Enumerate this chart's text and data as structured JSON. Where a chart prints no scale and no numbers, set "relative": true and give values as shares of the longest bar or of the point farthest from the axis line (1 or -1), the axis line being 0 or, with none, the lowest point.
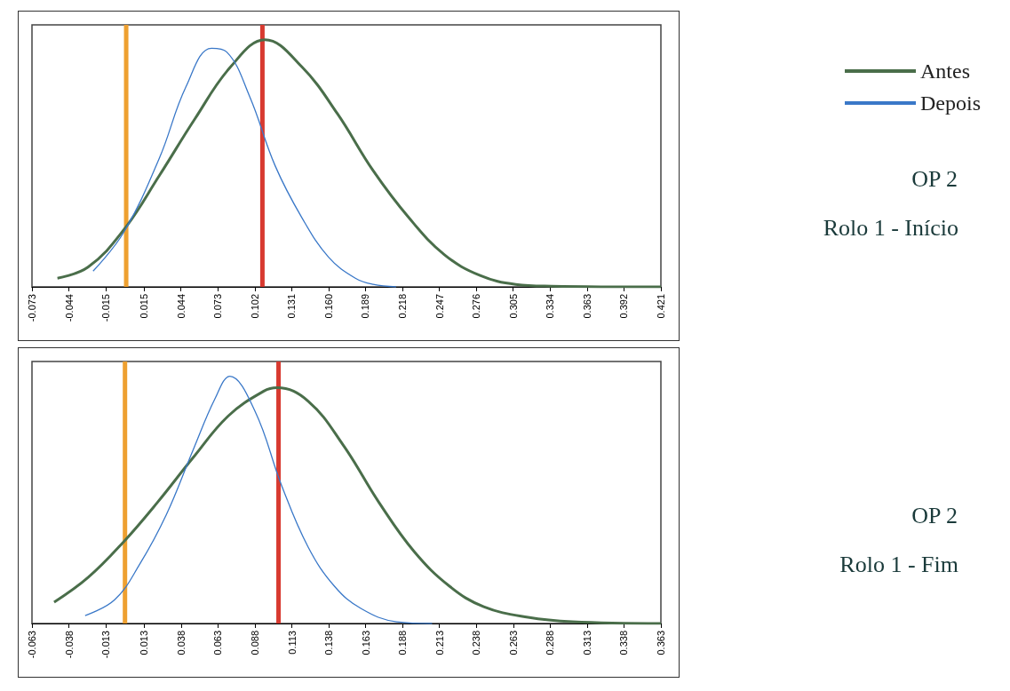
{
  "chart_data": [
    {
      "type": "line",
      "relative": true,
      "legend": "top right",
      "grid": false,
      "marker": "none",
      "annotations": [
        "OP 2",
        "Rolo 1 - Início"
      ],
      "xlim": [
        -0.073,
        0.421
      ],
      "xticks": [
        -0.073,
        -0.044,
        -0.015,
        0.015,
        0.044,
        0.073,
        0.102,
        0.131,
        {
          "value": 0.16,
          "label": "0.160"
        },
        0.189,
        0.218,
        0.247,
        0.276,
        0.305,
        0.334,
        0.363,
        0.392,
        0.421
      ],
      "ref_lines": [
        {
          "axis": "x",
          "value": 0.001,
          "color": "#eea030"
        },
        {
          "axis": "x",
          "value": 0.108,
          "color": "#d83a30"
        }
      ],
      "series": [
        {
          "name": "Antes",
          "color": "#4a6e4a",
          "x": [
            -0.053,
            -0.029,
            -0.001,
            0.027,
            0.055,
            0.083,
            0.11,
            0.139,
            0.167,
            0.195,
            0.223,
            0.251,
            0.279,
            0.307,
            0.335,
            0.421
          ],
          "values": [
            0.035,
            0.08,
            0.23,
            0.45,
            0.68,
            0.89,
            1,
            0.89,
            0.7,
            0.47,
            0.28,
            0.13,
            0.046,
            0.01,
            0.003,
            0
          ]
        },
        {
          "name": "Depois",
          "color": "#3a78c8",
          "x": [
            -0.025,
            -0.001,
            0.027,
            0.048,
            0.068,
            0.08,
            0.098,
            0.118,
            0.139,
            0.16,
            0.181,
            0.195,
            0.213
          ],
          "values": [
            0.064,
            0.22,
            0.52,
            0.81,
            0.965,
            0.95,
            0.77,
            0.49,
            0.28,
            0.12,
            0.035,
            0.01,
            0
          ]
        }
      ]
    },
    {
      "type": "line",
      "relative": true,
      "legend": false,
      "grid": false,
      "marker": "none",
      "annotations": [
        "OP 2",
        "Rolo 1 - Fim"
      ],
      "xlim": [
        -0.063,
        0.363
      ],
      "xticks": [
        -0.063,
        -0.038,
        -0.013,
        0.013,
        0.038,
        0.063,
        0.088,
        0.113,
        0.138,
        0.163,
        0.188,
        0.213,
        0.238,
        0.263,
        0.288,
        0.313,
        0.338,
        0.363
      ],
      "ref_lines": [
        {
          "axis": "x",
          "value": 0,
          "color": "#eea030"
        },
        {
          "axis": "x",
          "value": 0.104,
          "color": "#d83a30"
        }
      ],
      "series": [
        {
          "color": "#4a6e4a",
          "x": [
            -0.048,
            -0.025,
            -0.001,
            0.022,
            0.046,
            0.07,
            0.094,
            0.103,
            0.124,
            0.148,
            0.172,
            0.196,
            0.22,
            0.243,
            0.273,
            0.303,
            0.363
          ],
          "values": [
            0.086,
            0.186,
            0.33,
            0.49,
            0.67,
            0.84,
            0.94,
            0.954,
            0.9,
            0.72,
            0.49,
            0.29,
            0.15,
            0.068,
            0.025,
            0.007,
            0
          ]
        },
        {
          "color": "#3a78c8",
          "x": [
            -0.027,
            -0.007,
            0.01,
            0.028,
            0.046,
            0.061,
            0.071,
            0.088,
            0.106,
            0.124,
            0.142,
            0.16,
            0.184,
            0.208
          ],
          "values": [
            0.032,
            0.096,
            0.24,
            0.44,
            0.7,
            0.91,
            1,
            0.86,
            0.56,
            0.31,
            0.15,
            0.06,
            0.007,
            0
          ]
        }
      ]
    }
  ]
}
